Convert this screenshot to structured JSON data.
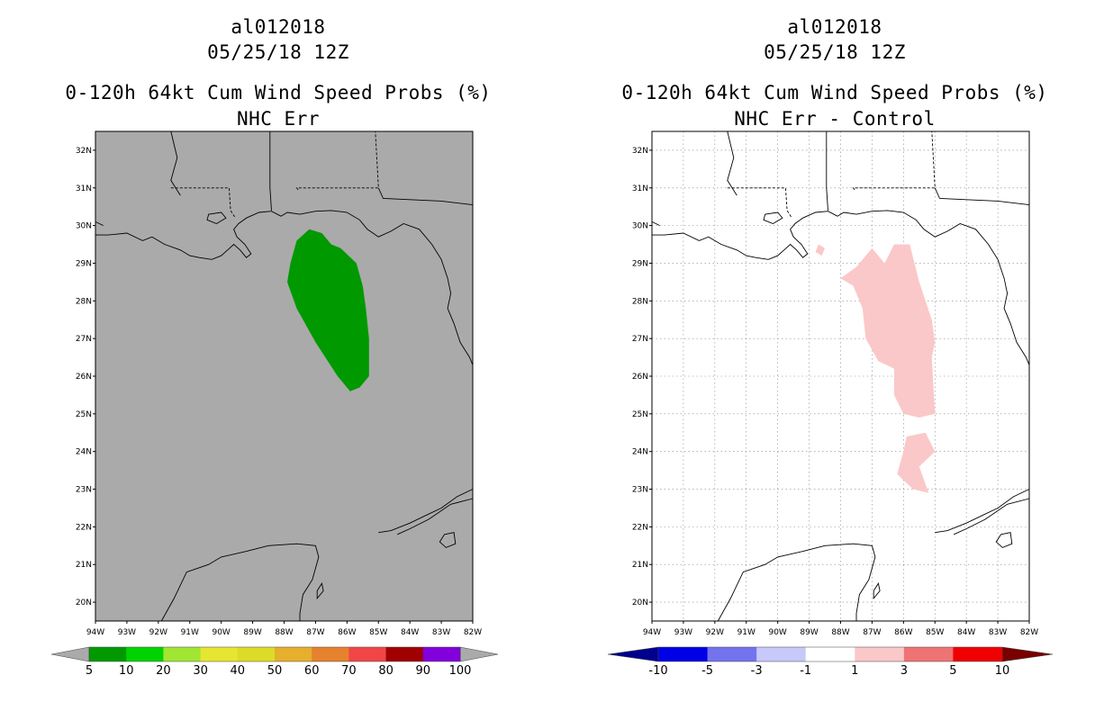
{
  "panels": [
    {
      "storm_id": "al012018",
      "datetime": "05/25/18 12Z",
      "product": "0-120h 64kt Cum Wind Speed Probs (%)",
      "subtitle": "NHC Err",
      "background": "#aaaaaa",
      "grid": false,
      "colorbar_labels": [
        "5",
        "10",
        "20",
        "30",
        "40",
        "50",
        "60",
        "70",
        "80",
        "90",
        "100"
      ],
      "colorbar_colors": [
        "#009a00",
        "#00d400",
        "#a0e632",
        "#e6e632",
        "#dcdc28",
        "#e6af2d",
        "#e6822d",
        "#f04646",
        "#a00000",
        "#8200dc"
      ],
      "colorbar_end_colors": [
        "#aaaaaa",
        "#aaaaaa"
      ],
      "fill_color": "#009900"
    },
    {
      "storm_id": "al012018",
      "datetime": "05/25/18 12Z",
      "product": "0-120h 64kt Cum Wind Speed Probs (%)",
      "subtitle": "NHC Err - Control",
      "background": "#ffffff",
      "grid": true,
      "colorbar_labels": [
        "-10",
        "-5",
        "-3",
        "-1",
        "1",
        "3",
        "5",
        "10"
      ],
      "colorbar_colors": [
        "#0000e6",
        "#7373f0",
        "#c8c8fa",
        "#ffffff",
        "#fac8c8",
        "#f07373",
        "#f00000"
      ],
      "colorbar_end_colors": [
        "#00008c",
        "#780000"
      ],
      "fill_color": "#fac8c8"
    }
  ],
  "map": {
    "lat_labels": [
      "32N",
      "31N",
      "30N",
      "29N",
      "28N",
      "27N",
      "26N",
      "25N",
      "24N",
      "23N",
      "22N",
      "21N",
      "20N"
    ],
    "lon_labels": [
      "94W",
      "93W",
      "92W",
      "91W",
      "90W",
      "89W",
      "88W",
      "87W",
      "86W",
      "85W",
      "84W",
      "83W",
      "82W"
    ],
    "lat_values": [
      32,
      31,
      30,
      29,
      28,
      27,
      26,
      25,
      24,
      23,
      22,
      21,
      20
    ],
    "lon_values": [
      -94,
      -93,
      -92,
      -91,
      -90,
      -89,
      -88,
      -87,
      -86,
      -85,
      -84,
      -83,
      -82
    ],
    "lat_range": [
      19.5,
      32.5
    ],
    "lon_range": [
      -94,
      -82
    ]
  },
  "chart_data": [
    {
      "type": "heatmap",
      "title": "0-120h 64kt Cum Wind Speed Probs (%) NHC Err",
      "region": "Gulf of Mexico",
      "contours": [
        {
          "level": "5-10",
          "color": "#009900",
          "polygon_lonlat": [
            [
              -87.2,
              29.9
            ],
            [
              -86.8,
              29.8
            ],
            [
              -86.5,
              29.5
            ],
            [
              -86.2,
              29.4
            ],
            [
              -85.7,
              29.0
            ],
            [
              -85.5,
              28.4
            ],
            [
              -85.4,
              27.8
            ],
            [
              -85.3,
              27.0
            ],
            [
              -85.3,
              26.0
            ],
            [
              -85.6,
              25.7
            ],
            [
              -85.9,
              25.6
            ],
            [
              -86.3,
              26.0
            ],
            [
              -87.0,
              26.9
            ],
            [
              -87.6,
              27.8
            ],
            [
              -87.9,
              28.5
            ],
            [
              -87.8,
              29.0
            ],
            [
              -87.6,
              29.6
            ]
          ]
        }
      ]
    },
    {
      "type": "heatmap",
      "title": "0-120h 64kt Cum Wind Speed Probs (%) NHC Err - Control",
      "region": "Gulf of Mexico",
      "contours": [
        {
          "level": "1-3",
          "color": "#fac8c8",
          "polygon_lonlat": [
            [
              -86.3,
              29.5
            ],
            [
              -85.8,
              29.5
            ],
            [
              -85.5,
              28.5
            ],
            [
              -85.1,
              27.5
            ],
            [
              -85.0,
              26.9
            ],
            [
              -85.1,
              26.5
            ],
            [
              -85.0,
              25.0
            ],
            [
              -85.5,
              24.9
            ],
            [
              -86.0,
              25.0
            ],
            [
              -86.3,
              25.5
            ],
            [
              -86.3,
              26.2
            ],
            [
              -86.8,
              26.4
            ],
            [
              -87.2,
              27.0
            ],
            [
              -87.3,
              27.8
            ],
            [
              -87.6,
              28.4
            ],
            [
              -88.0,
              28.6
            ],
            [
              -87.5,
              28.9
            ],
            [
              -87.0,
              29.4
            ],
            [
              -86.6,
              29.0
            ]
          ]
        },
        {
          "level": "1-3",
          "color": "#fac8c8",
          "polygon_lonlat": [
            [
              -85.9,
              24.4
            ],
            [
              -85.3,
              24.5
            ],
            [
              -85.0,
              24.0
            ],
            [
              -85.5,
              23.6
            ],
            [
              -85.2,
              22.9
            ],
            [
              -85.7,
              23.0
            ],
            [
              -86.2,
              23.4
            ],
            [
              -86.0,
              24.0
            ]
          ]
        },
        {
          "level": "1-3",
          "color": "#fac8c8",
          "polygon_lonlat": [
            [
              -88.7,
              29.5
            ],
            [
              -88.5,
              29.4
            ],
            [
              -88.6,
              29.2
            ],
            [
              -88.8,
              29.3
            ]
          ]
        }
      ]
    }
  ]
}
